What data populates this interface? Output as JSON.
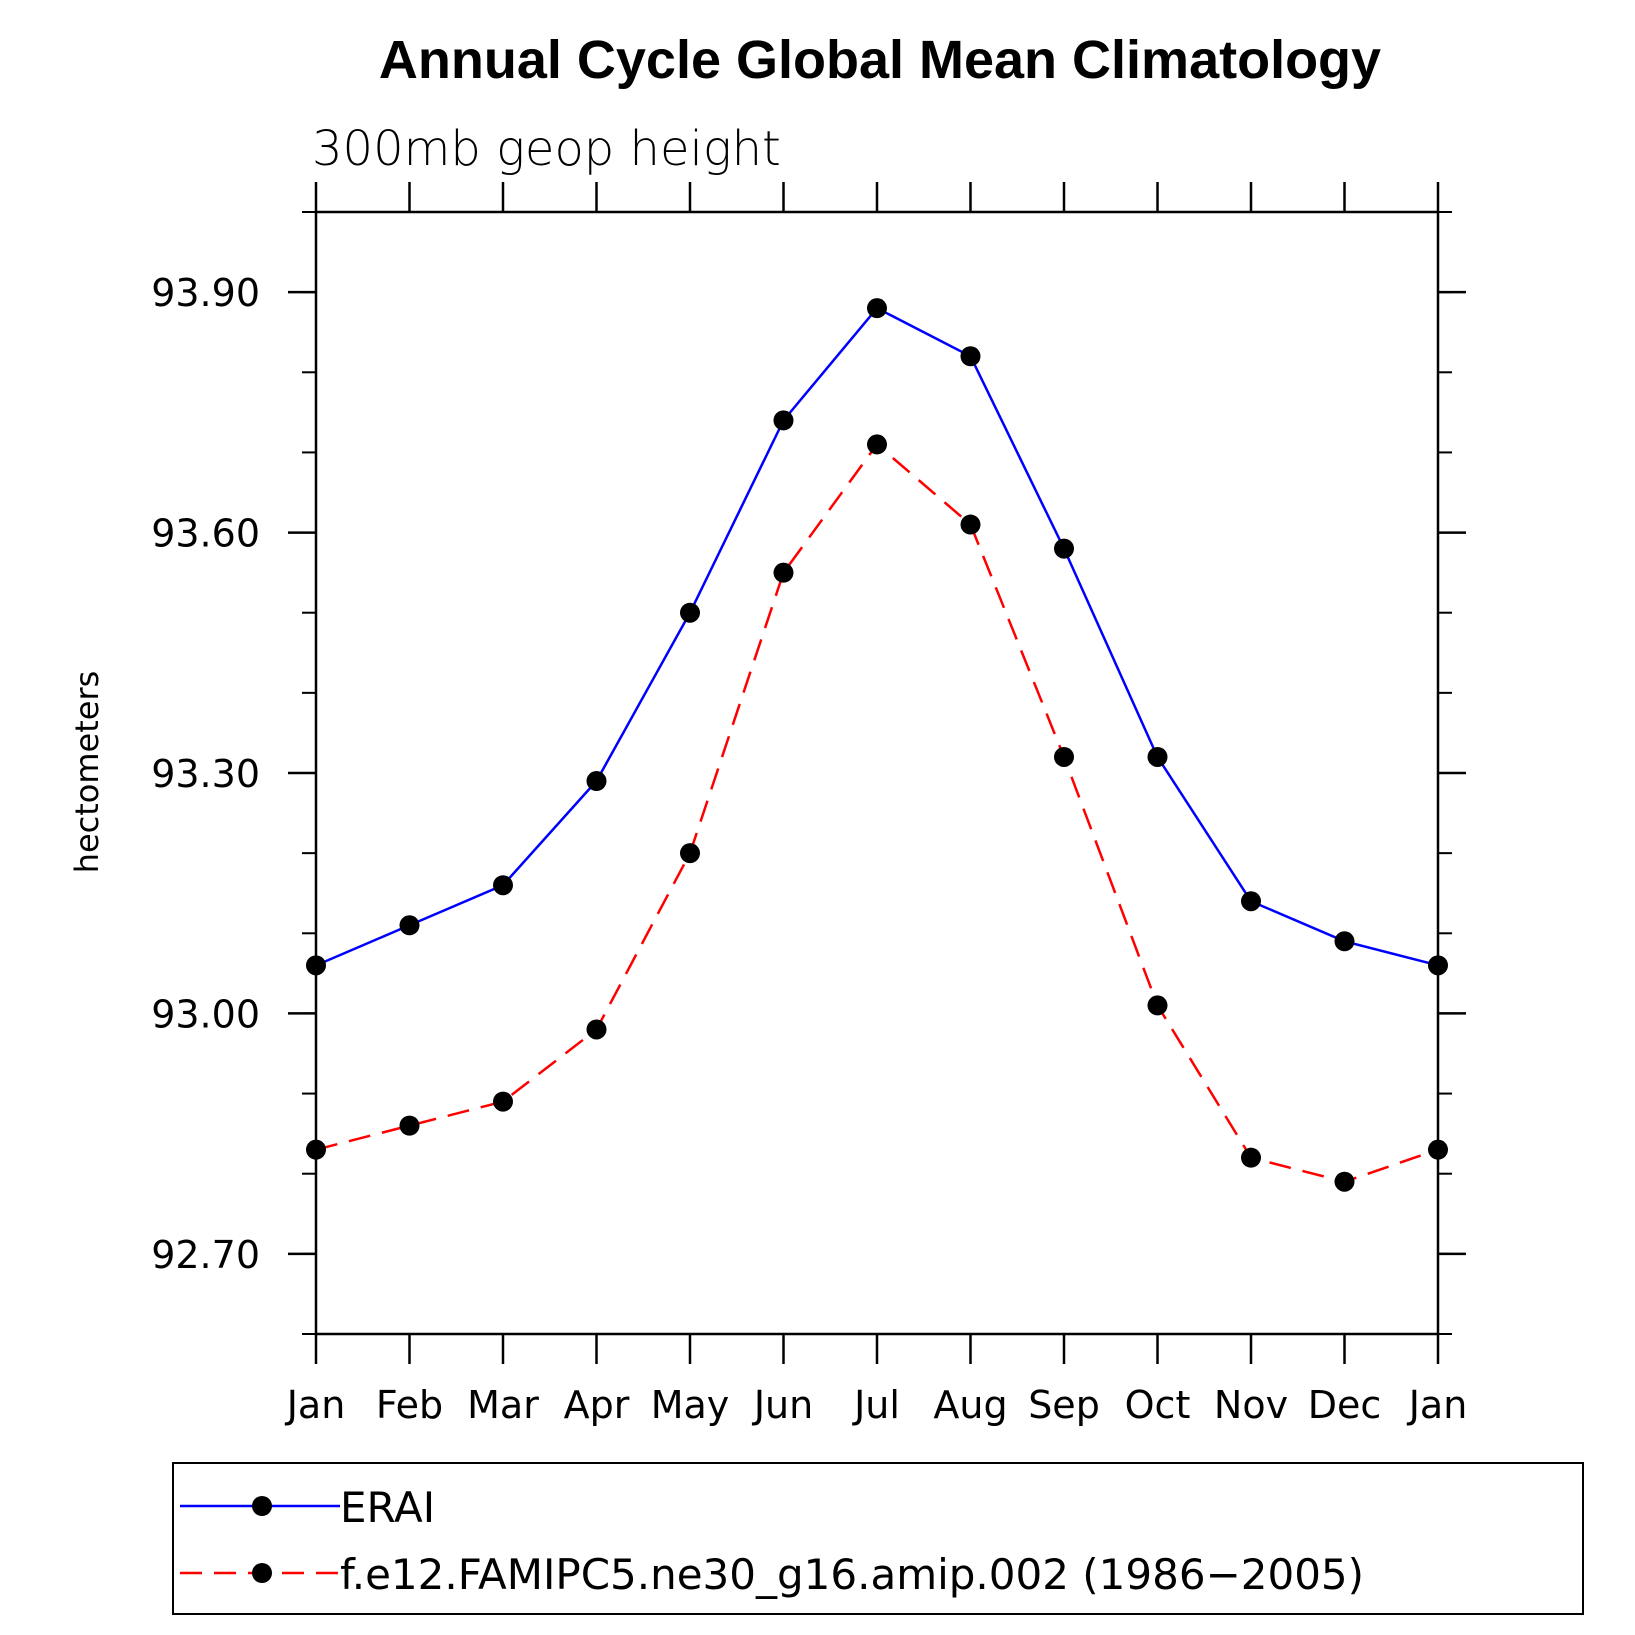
{
  "chart_data": {
    "type": "line",
    "title": "Annual Cycle Global Mean Climatology",
    "subtitle": "300mb geop height",
    "ylabel": "hectometers",
    "xlabel": "",
    "categories": [
      "Jan",
      "Feb",
      "Mar",
      "Apr",
      "May",
      "Jun",
      "Jul",
      "Aug",
      "Sep",
      "Oct",
      "Nov",
      "Dec",
      "Jan"
    ],
    "ylim": [
      92.6,
      94.0
    ],
    "yticks": [
      92.7,
      93.0,
      93.3,
      93.6,
      93.9
    ],
    "ytick_labels": [
      "92.70",
      "93.00",
      "93.30",
      "93.60",
      "93.90"
    ],
    "y_minor_step": 0.1,
    "grid": false,
    "legend_position": "bottom",
    "series": [
      {
        "name": "ERAI",
        "color": "#0000ff",
        "dash": "solid",
        "values": [
          93.06,
          93.11,
          93.16,
          93.29,
          93.5,
          93.74,
          93.88,
          93.82,
          93.58,
          93.32,
          93.14,
          93.09,
          93.06
        ]
      },
      {
        "name": "f.e12.FAMIPC5.ne30_g16.amip.002 (1986−2005)",
        "color": "#ff0000",
        "dash": "dashed",
        "values": [
          92.83,
          92.86,
          92.89,
          92.98,
          93.2,
          93.55,
          93.71,
          93.61,
          93.32,
          93.01,
          92.82,
          92.79,
          92.83
        ]
      }
    ]
  }
}
